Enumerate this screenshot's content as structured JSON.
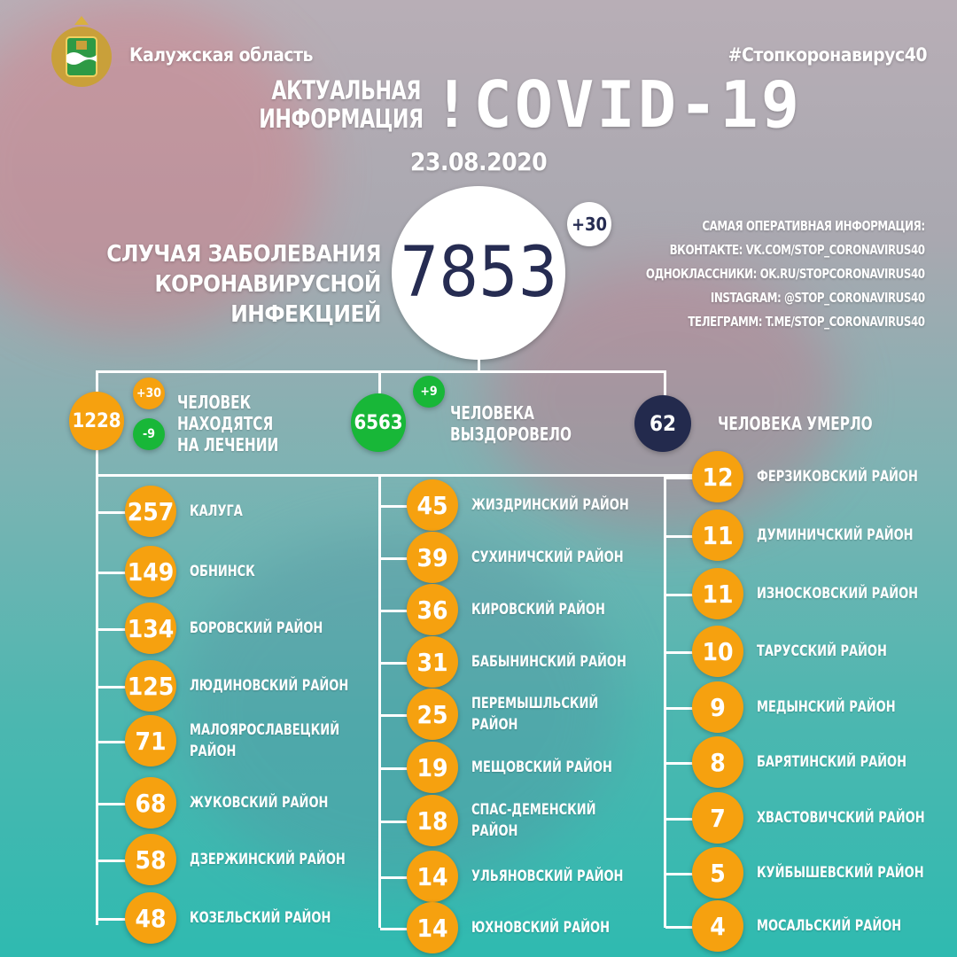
{
  "header": {
    "region": "Калужская область",
    "hashtag": "#Стопкоронавирус40",
    "title_line1": "АКТУАЛЬНАЯ",
    "title_line2": "ИНФОРМАЦИЯ",
    "title_main": "!COVID-19",
    "date": "23.08.2020"
  },
  "total": {
    "label_line1": "СЛУЧАЯ ЗАБОЛЕВАНИЯ",
    "label_line2": "КОРОНАВИРУСНОЙ ИНФЕКЦИЕЙ",
    "value": "7853",
    "delta": "+30"
  },
  "contacts": [
    "САМАЯ ОПЕРАТИВНАЯ ИНФОРМАЦИЯ:",
    "ВКОНТАКТЕ: VK.COM/STOP_CORONAVIRUS40",
    "ОДНОКЛАССНИКИ: OK.RU/STOPCORONAVIRUS40",
    "INSTAGRAM: @STOP_CORONAVIRUS40",
    "ТЕЛЕГРАММ: T.ME/STOP_CORONAVIRUS40"
  ],
  "stats": {
    "treatment": {
      "value": "1228",
      "plus": "+30",
      "minus": "-9",
      "label": "ЧЕЛОВЕК\nНАХОДЯТСЯ\nНА ЛЕЧЕНИИ"
    },
    "recovered": {
      "value": "6563",
      "plus": "+9",
      "label": "ЧЕЛОВЕКА\nВЫЗДОРОВЕЛО"
    },
    "died": {
      "value": "62",
      "label": "ЧЕЛОВЕКА УМЕРЛО"
    }
  },
  "colors": {
    "orange": "#f6a10f",
    "green": "#18b738",
    "navy": "#232a4d"
  },
  "districts": [
    [
      {
        "v": "257",
        "n": "КАЛУГА"
      },
      {
        "v": "149",
        "n": "ОБНИНСК"
      },
      {
        "v": "134",
        "n": "БОРОВСКИЙ РАЙОН"
      },
      {
        "v": "125",
        "n": "ЛЮДИНОВСКИЙ РАЙОН"
      },
      {
        "v": "71",
        "n": "МАЛОЯРОСЛАВЕЦКИЙ\nРАЙОН"
      },
      {
        "v": "68",
        "n": "ЖУКОВСКИЙ РАЙОН"
      },
      {
        "v": "58",
        "n": "ДЗЕРЖИНСКИЙ РАЙОН"
      },
      {
        "v": "48",
        "n": "КОЗЕЛЬСКИЙ РАЙОН"
      }
    ],
    [
      {
        "v": "45",
        "n": "ЖИЗДРИНСКИЙ РАЙОН"
      },
      {
        "v": "39",
        "n": "СУХИНИЧСКИЙ РАЙОН"
      },
      {
        "v": "36",
        "n": "КИРОВСКИЙ РАЙОН"
      },
      {
        "v": "31",
        "n": "БАБЫНИНСКИЙ РАЙОН"
      },
      {
        "v": "25",
        "n": "ПЕРЕМЫШЛЬСКИЙ\n РАЙОН"
      },
      {
        "v": "19",
        "n": "МЕЩОВСКИЙ РАЙОН"
      },
      {
        "v": "18",
        "n": "СПАС-ДЕМЕНСКИЙ\nРАЙОН"
      },
      {
        "v": "14",
        "n": "УЛЬЯНОВСКИЙ РАЙОН"
      },
      {
        "v": "14",
        "n": "ЮХНОВСКИЙ РАЙОН"
      }
    ],
    [
      {
        "v": "12",
        "n": "ФЕРЗИКОВСКИЙ РАЙОН"
      },
      {
        "v": "11",
        "n": "ДУМИНИЧСКИЙ РАЙОН"
      },
      {
        "v": "11",
        "n": "ИЗНОСКОВСКИЙ РАЙОН"
      },
      {
        "v": "10",
        "n": "ТАРУССКИЙ РАЙОН"
      },
      {
        "v": "9",
        "n": "МЕДЫНСКИЙ РАЙОН"
      },
      {
        "v": "8",
        "n": "БАРЯТИНСКИЙ РАЙОН"
      },
      {
        "v": "7",
        "n": "ХВАСТОВИЧСКИЙ РАЙОН"
      },
      {
        "v": "5",
        "n": "КУЙБЫШЕВСКИЙ РАЙОН"
      },
      {
        "v": "4",
        "n": "МОСАЛЬСКИЙ РАЙОН"
      }
    ]
  ]
}
